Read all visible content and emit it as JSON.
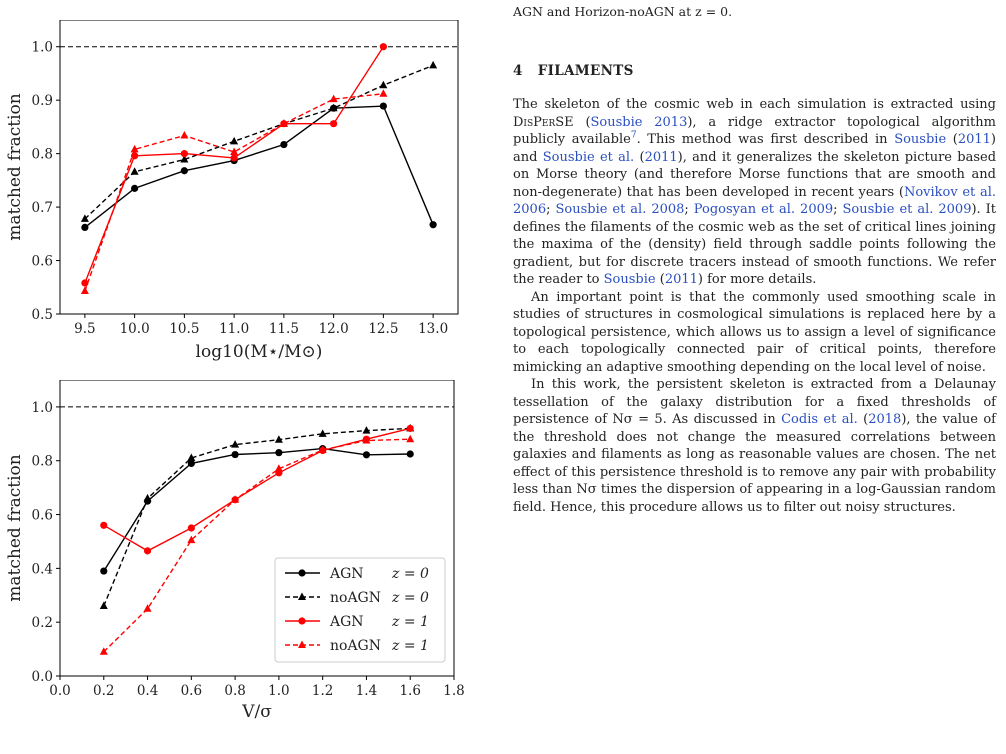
{
  "caption_tail": "AGN and Horizon-noAGN at z = 0.",
  "section": {
    "number": "4",
    "title": "FILAMENTS"
  },
  "paragraphs": [
    [
      {
        "t": "The skeleton of the cosmic web in each simulation is extracted using "
      },
      {
        "t": "DisPerSE",
        "sc": true
      },
      {
        "t": " ("
      },
      {
        "t": "Sousbie 2013",
        "ref": true
      },
      {
        "t": "), a ridge extractor topological algorithm publicly available"
      },
      {
        "t": "7",
        "sup": true
      },
      {
        "t": ". This method was first described in "
      },
      {
        "t": "Sousbie",
        "ref": true
      },
      {
        "t": " ("
      },
      {
        "t": "2011",
        "ref": true
      },
      {
        "t": ") and "
      },
      {
        "t": "Sousbie et al.",
        "ref": true
      },
      {
        "t": " ("
      },
      {
        "t": "2011",
        "ref": true
      },
      {
        "t": "), and it generalizes the skeleton picture based on Morse theory (and therefore Morse functions that are smooth and non-degenerate) that has been developed in recent years ("
      },
      {
        "t": "Novikov et al. 2006",
        "ref": true
      },
      {
        "t": "; "
      },
      {
        "t": "Sousbie et al. 2008",
        "ref": true
      },
      {
        "t": "; "
      },
      {
        "t": "Pogosyan et al. 2009",
        "ref": true
      },
      {
        "t": "; "
      },
      {
        "t": "Sousbie et al. 2009",
        "ref": true
      },
      {
        "t": "). It defines the filaments of the cosmic web as the set of critical lines joining the maxima of the (density) field through saddle points following the gradient, but for discrete tracers instead of smooth functions. We refer the reader to "
      },
      {
        "t": "Sousbie",
        "ref": true
      },
      {
        "t": " ("
      },
      {
        "t": "2011",
        "ref": true
      },
      {
        "t": ") for more details."
      }
    ],
    [
      {
        "t": "An important point is that the commonly used smoothing scale in studies of structures in cosmological simulations is replaced here by a topological persistence, which allows us to assign a level of significance to each topologically connected pair of critical points, therefore mimicking an adaptive smoothing depending on the local level of noise."
      }
    ],
    [
      {
        "t": "In this work, the persistent skeleton is extracted from a Delaunay tessellation of the galaxy distribution for a fixed thresholds of persistence of Nσ = 5. As discussed in "
      },
      {
        "t": "Codis et al.",
        "ref": true
      },
      {
        "t": " ("
      },
      {
        "t": "2018",
        "ref": true
      },
      {
        "t": "), the value of the threshold does not change the measured correlations between galaxies and filaments as long as reasonable values are chosen. The net effect of this persistence threshold is to remove any pair with probability less than Nσ times the dispersion of appearing in a log-Gaussian random field. Hence, this procedure allows us to filter out noisy structures."
      }
    ]
  ],
  "chart_data": [
    {
      "type": "line",
      "xlabel": "log10(M⋆/M⊙)",
      "ylabel": "matched fraction",
      "xlim": [
        9.25,
        13.25
      ],
      "ylim": [
        0.5,
        1.05
      ],
      "xticks": [
        "9.5",
        "10.0",
        "10.5",
        "11.0",
        "11.5",
        "12.0",
        "12.5",
        "13.0"
      ],
      "xtick_values": [
        9.5,
        10.0,
        10.5,
        11.0,
        11.5,
        12.0,
        12.5,
        13.0
      ],
      "yticks": [
        "0.5",
        "0.6",
        "0.7",
        "0.8",
        "0.9",
        "1.0"
      ],
      "ytick_values": [
        0.5,
        0.6,
        0.7,
        0.8,
        0.9,
        1.0
      ],
      "reference_line": 1.0,
      "grid": false,
      "legend": false,
      "series": [
        {
          "x": [
            9.5,
            10.0,
            10.5,
            11.0,
            11.5,
            12.0,
            12.5,
            13.0
          ],
          "y": [
            0.662,
            0.735,
            0.768,
            0.787,
            0.817,
            0.885,
            0.889,
            0.667
          ],
          "color": "#000000",
          "dashed": false,
          "marker": "circle"
        },
        {
          "x": [
            9.5,
            10.0,
            10.5,
            11.0,
            11.5,
            12.0,
            12.5,
            13.0
          ],
          "y": [
            0.678,
            0.766,
            0.789,
            0.823,
            0.856,
            0.885,
            0.928,
            0.965
          ],
          "color": "#000000",
          "dashed": true,
          "marker": "triangle"
        },
        {
          "x": [
            9.5,
            10.0,
            10.5,
            11.0,
            11.5,
            12.0,
            12.5
          ],
          "y": [
            0.558,
            0.796,
            0.8,
            0.792,
            0.856,
            0.856,
            1.0
          ],
          "color": "#ff0000",
          "dashed": false,
          "marker": "circle"
        },
        {
          "x": [
            9.5,
            10.0,
            10.5,
            11.0,
            11.5,
            12.0,
            12.5
          ],
          "y": [
            0.543,
            0.808,
            0.834,
            0.803,
            0.856,
            0.902,
            0.912
          ],
          "color": "#ff0000",
          "dashed": true,
          "marker": "triangle"
        }
      ]
    },
    {
      "type": "line",
      "xlabel": "V/σ",
      "ylabel": "matched fraction",
      "xlim": [
        0.0,
        1.8
      ],
      "ylim": [
        0.0,
        1.1
      ],
      "xticks": [
        "0.0",
        "0.2",
        "0.4",
        "0.6",
        "0.8",
        "1.0",
        "1.2",
        "1.4",
        "1.6",
        "1.8"
      ],
      "xtick_values": [
        0.0,
        0.2,
        0.4,
        0.6,
        0.8,
        1.0,
        1.2,
        1.4,
        1.6,
        1.8
      ],
      "yticks": [
        "0.0",
        "0.2",
        "0.4",
        "0.6",
        "0.8",
        "1.0"
      ],
      "ytick_values": [
        0.0,
        0.2,
        0.4,
        0.6,
        0.8,
        1.0
      ],
      "reference_line": 1.0,
      "grid": false,
      "legend": "lower-right",
      "series": [
        {
          "name_main": "AGN",
          "name_z": "z = 0",
          "x": [
            0.2,
            0.4,
            0.6,
            0.8,
            1.0,
            1.2,
            1.4,
            1.6
          ],
          "y": [
            0.39,
            0.65,
            0.79,
            0.823,
            0.83,
            0.845,
            0.822,
            0.825
          ],
          "color": "#000000",
          "dashed": false,
          "marker": "circle"
        },
        {
          "name_main": "noAGN",
          "name_z": "z = 0",
          "x": [
            0.2,
            0.4,
            0.6,
            0.8,
            1.0,
            1.2,
            1.4,
            1.6
          ],
          "y": [
            0.26,
            0.66,
            0.81,
            0.86,
            0.878,
            0.9,
            0.912,
            0.92
          ],
          "color": "#000000",
          "dashed": true,
          "marker": "triangle"
        },
        {
          "name_main": "AGN",
          "name_z": "z = 1",
          "x": [
            0.2,
            0.4,
            0.6,
            0.8,
            1.0,
            1.2,
            1.4,
            1.6
          ],
          "y": [
            0.56,
            0.465,
            0.55,
            0.655,
            0.755,
            0.838,
            0.88,
            0.92
          ],
          "color": "#ff0000",
          "dashed": false,
          "marker": "circle"
        },
        {
          "name_main": "noAGN",
          "name_z": "z = 1",
          "x": [
            0.2,
            0.4,
            0.6,
            0.8,
            1.0,
            1.2,
            1.4,
            1.6
          ],
          "y": [
            0.09,
            0.25,
            0.505,
            0.655,
            0.77,
            0.84,
            0.875,
            0.88
          ],
          "color": "#ff0000",
          "dashed": true,
          "marker": "triangle"
        }
      ]
    }
  ]
}
